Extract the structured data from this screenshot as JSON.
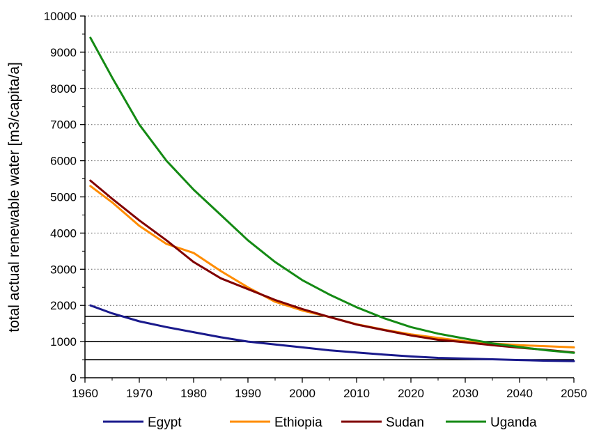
{
  "chart_data": {
    "type": "line",
    "title": "",
    "xlabel": "",
    "ylabel": "total actual renewable water [m3/capita/a]",
    "xlim": [
      1960,
      2050
    ],
    "ylim": [
      0,
      10000
    ],
    "x_ticks": [
      1960,
      1970,
      1980,
      1990,
      2000,
      2010,
      2020,
      2030,
      2040,
      2050
    ],
    "y_ticks": [
      0,
      1000,
      2000,
      3000,
      4000,
      5000,
      6000,
      7000,
      8000,
      9000,
      10000
    ],
    "grid": "horizontal dotted",
    "legend_position": "bottom",
    "reference_lines": [
      500,
      1000,
      1700
    ],
    "series": [
      {
        "name": "Egypt",
        "color": "#1a1a8c",
        "x": [
          1961,
          1965,
          1970,
          1975,
          1980,
          1985,
          1990,
          1995,
          2000,
          2005,
          2010,
          2015,
          2020,
          2025,
          2030,
          2035,
          2040,
          2045,
          2050
        ],
        "values": [
          2000,
          1780,
          1560,
          1400,
          1260,
          1120,
          1000,
          920,
          840,
          760,
          700,
          640,
          590,
          550,
          530,
          510,
          490,
          470,
          460
        ]
      },
      {
        "name": "Ethiopia",
        "color": "#ff8c00",
        "x": [
          1961,
          1965,
          1970,
          1975,
          1980,
          1985,
          1990,
          1995,
          2000,
          2005,
          2010,
          2015,
          2020,
          2025,
          2030,
          2035,
          2040,
          2045,
          2050
        ],
        "values": [
          5300,
          4850,
          4200,
          3700,
          3450,
          2950,
          2500,
          2100,
          1860,
          1680,
          1480,
          1330,
          1200,
          1100,
          1010,
          950,
          900,
          870,
          840
        ]
      },
      {
        "name": "Sudan",
        "color": "#800000",
        "x": [
          1961,
          1965,
          1970,
          1975,
          1980,
          1985,
          1990,
          1995,
          2000,
          2005,
          2010,
          2015,
          2020,
          2025,
          2030,
          2035,
          2040,
          2045,
          2050
        ],
        "values": [
          5450,
          4950,
          4350,
          3800,
          3200,
          2750,
          2450,
          2150,
          1900,
          1680,
          1470,
          1320,
          1170,
          1050,
          980,
          900,
          830,
          770,
          700
        ]
      },
      {
        "name": "Uganda",
        "color": "#148a14",
        "x": [
          1961,
          1965,
          1970,
          1975,
          1980,
          1985,
          1990,
          1995,
          2000,
          2005,
          2010,
          2015,
          2020,
          2025,
          2030,
          2035,
          2040,
          2045,
          2050
        ],
        "values": [
          9400,
          8300,
          7000,
          6000,
          5200,
          4500,
          3800,
          3200,
          2700,
          2300,
          1950,
          1650,
          1400,
          1220,
          1080,
          950,
          850,
          760,
          690
        ]
      }
    ]
  }
}
